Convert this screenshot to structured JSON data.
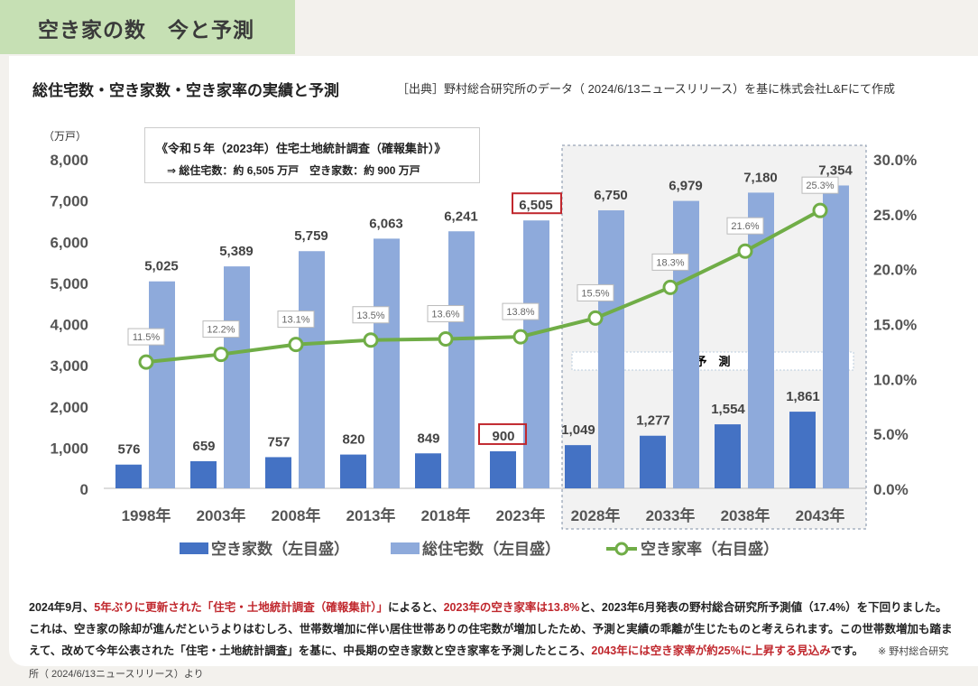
{
  "header": {
    "title": "空き家の数　今と予測"
  },
  "chart_data": {
    "type": "bar+line",
    "title": "総住宅数・空き家数・空き家率の実績と予測",
    "source": "［出典］野村総合研究所のデータ（ 2024/6/13ニュースリリース）を基に株式会社L&Fにて作成",
    "unit_label": "（万戸）",
    "categories": [
      "1998年",
      "2003年",
      "2008年",
      "2013年",
      "2018年",
      "2023年",
      "2028年",
      "2033年",
      "2038年",
      "2043年"
    ],
    "series": [
      {
        "name": "空き家数（左目盛）",
        "type": "bar",
        "axis": "left",
        "color": "#4472c4",
        "values": [
          576,
          659,
          757,
          820,
          849,
          900,
          1049,
          1277,
          1554,
          1861
        ]
      },
      {
        "name": "総住宅数（左目盛）",
        "type": "bar",
        "axis": "left",
        "color": "#8eaadb",
        "values": [
          5025,
          5389,
          5759,
          6063,
          6241,
          6505,
          6750,
          6979,
          7180,
          7354
        ]
      },
      {
        "name": "空き家率（右目盛）",
        "type": "line",
        "axis": "right",
        "color": "#70ad47",
        "values": [
          11.5,
          12.2,
          13.1,
          13.5,
          13.6,
          13.8,
          15.5,
          18.3,
          21.6,
          25.3
        ]
      }
    ],
    "ylim_left": [
      0,
      8000
    ],
    "ylim_right": [
      0,
      30
    ],
    "left_ticks": [
      "0",
      "1,000",
      "2,000",
      "3,000",
      "4,000",
      "5,000",
      "6,000",
      "7,000",
      "8,000"
    ],
    "right_ticks": [
      "0.0%",
      "5.0%",
      "10.0%",
      "15.0%",
      "20.0%",
      "25.0%",
      "30.0%"
    ],
    "forecast_label": "予　測",
    "highlighted": [
      "6,505",
      "900"
    ]
  },
  "note": {
    "line1": "《令和５年（2023年）住宅土地統計調査（確報集計）》",
    "line2": "⇒ 総住宅数：約 6,505 万戸　空き家数：約 900 万戸"
  },
  "para": {
    "p1": "2024年9月、",
    "p2": "5年ぶりに更新された「住宅・土地統計調査（確報集計）」",
    "p3": "によると、",
    "p4": "2023年の空き家率は13.8%",
    "p5": "と、2023年6月発表の野村総合研究所予測値（17.4%）を下回りました。これは、空き家の除却が進んだというよりはむしろ、世帯数増加に伴い居住世帯ありの住宅数が増加したため、予測と実績の乖離が生じたものと考えられます。この世帯数増加も踏まえて、改めて今年公表された「住宅・土地統計調査」を基に、中長期の空き家数と空き家率を予測したところ、",
    "p6": "2043年には空き家率が約25%に上昇する見込み",
    "p7": "です。",
    "ref": "※ 野村総合研究所（ 2024/6/13ニュースリリース）より"
  }
}
